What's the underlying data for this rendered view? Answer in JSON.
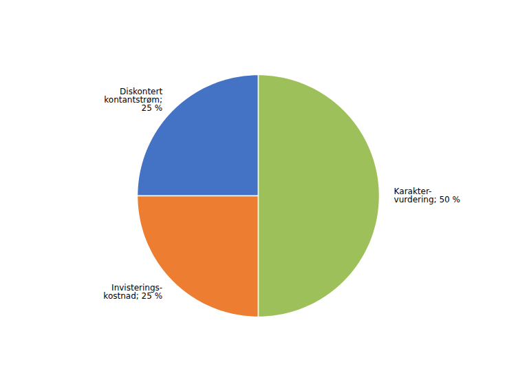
{
  "chart_data": {
    "type": "pie",
    "categories": [
      "Diskontert\nkontantstrøm;\n25 %",
      "Invisterings-\nkostnad; 25 %",
      "Karakter-\nvurdering; 50 %"
    ],
    "values": [
      25,
      25,
      50
    ],
    "colors": [
      "#4472C4",
      "#ED7D31",
      "#9DC05A"
    ]
  }
}
